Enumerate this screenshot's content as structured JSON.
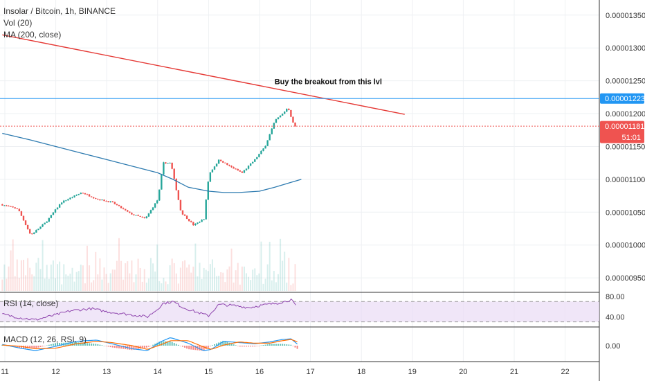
{
  "chart_data": {
    "type": "candlestick",
    "title": "Insolar / Bitcoin, 1h, BINANCE",
    "indicators": {
      "volume": "Vol (20)",
      "ma": "MA (200, close)",
      "rsi": "RSI (14, close)",
      "macd": "MACD (12, 26, RSI, 9)"
    },
    "x_axis": {
      "labels": [
        "11",
        "12",
        "13",
        "14",
        "15",
        "16",
        "17",
        "18",
        "19",
        "20",
        "21",
        "22"
      ]
    },
    "price_axis": {
      "ticks": [
        "0.00001350",
        "0.00001300",
        "0.00001250",
        "0.00001200",
        "0.00001150",
        "0.00001100",
        "0.00001050",
        "0.00001000",
        "0.00000950"
      ],
      "tick_values": [
        1.35e-05,
        1.3e-05,
        1.25e-05,
        1.2e-05,
        1.15e-05,
        1.1e-05,
        1.05e-05,
        1e-05,
        9.5e-06
      ],
      "range": [
        9.28e-06,
        1.373e-05
      ]
    },
    "rsi_axis": {
      "ticks": [
        "80.00",
        "40.00"
      ],
      "tick_values": [
        80,
        40
      ],
      "range": [
        20,
        88
      ],
      "band": [
        30,
        70
      ]
    },
    "macd_axis": {
      "ticks": [
        "0.00"
      ],
      "tick_values": [
        0
      ]
    },
    "levels": {
      "resistance_label": "0.00001223",
      "resistance_value": 1.223e-05,
      "last_price_label": "0.00001181",
      "last_price_value": 1.181e-05,
      "countdown": "51:01"
    },
    "annotation": "Buy the breakout from this lvl",
    "trendline": {
      "from": {
        "day": 10.95,
        "price": 1.32e-05
      },
      "to": {
        "day": 18.85,
        "price": 1.199e-05
      }
    },
    "price_path": {
      "day": [
        10.95,
        11.3,
        11.55,
        11.85,
        12.15,
        12.55,
        12.85,
        13.15,
        13.5,
        13.8,
        14.05,
        14.15,
        14.3,
        14.5,
        14.75,
        14.95,
        15.05,
        15.25,
        15.45,
        15.7,
        15.95,
        16.15,
        16.35,
        16.5,
        16.6,
        16.72
      ],
      "price": [
        1.062e-05,
        1.055e-05,
        1.015e-05,
        1.035e-05,
        1.065e-05,
        1.08e-05,
        1.07e-05,
        1.065e-05,
        1.048e-05,
        1.04e-05,
        1.07e-05,
        1.125e-05,
        1.125e-05,
        1.05e-05,
        1.03e-05,
        1.04e-05,
        1.108e-05,
        1.13e-05,
        1.12e-05,
        1.11e-05,
        1.13e-05,
        1.15e-05,
        1.19e-05,
        1.2e-05,
        1.21e-05,
        1.181e-05
      ]
    },
    "ma_line": {
      "day": [
        10.95,
        11.5,
        12.0,
        12.5,
        13.0,
        13.5,
        14.0,
        14.3,
        14.6,
        15.0,
        15.3,
        15.6,
        16.0,
        16.3,
        16.6,
        16.82
      ],
      "price": [
        1.17e-05,
        1.16e-05,
        1.15e-05,
        1.14e-05,
        1.13e-05,
        1.12e-05,
        1.11e-05,
        1.1e-05,
        1.088e-05,
        1.082e-05,
        1.08e-05,
        1.08e-05,
        1.082e-05,
        1.088e-05,
        1.095e-05,
        1.1e-05
      ]
    },
    "rsi_line": {
      "day": [
        10.95,
        11.3,
        11.6,
        12.0,
        12.3,
        12.7,
        13.0,
        13.4,
        13.8,
        14.0,
        14.1,
        14.3,
        14.5,
        14.8,
        15.0,
        15.2,
        15.5,
        15.8,
        16.0,
        16.3,
        16.5,
        16.62,
        16.72
      ],
      "value": [
        45,
        38,
        34,
        44,
        52,
        56,
        50,
        45,
        40,
        55,
        66,
        70,
        58,
        48,
        42,
        64,
        62,
        58,
        62,
        66,
        70,
        74,
        60
      ]
    },
    "macd_line": {
      "day": [
        10.95,
        11.3,
        11.6,
        12.0,
        12.4,
        12.8,
        13.1,
        13.5,
        13.8,
        14.05,
        14.25,
        14.6,
        14.9,
        15.05,
        15.3,
        15.6,
        15.9,
        16.2,
        16.45,
        16.62,
        16.75
      ],
      "value": [
        0.2,
        -0.4,
        -0.8,
        -0.1,
        0.7,
        0.9,
        0.3,
        -0.5,
        -0.8,
        0.6,
        1.3,
        0.4,
        -0.8,
        -0.6,
        0.7,
        0.5,
        0.3,
        0.6,
        1.0,
        1.1,
        0.2
      ]
    },
    "macd_signal": {
      "day": [
        10.95,
        11.3,
        11.6,
        12.0,
        12.4,
        12.8,
        13.1,
        13.5,
        13.8,
        14.05,
        14.25,
        14.6,
        14.9,
        15.05,
        15.3,
        15.6,
        15.9,
        16.2,
        16.45,
        16.62,
        16.75
      ],
      "value": [
        0.1,
        -0.1,
        -0.5,
        -0.4,
        0.3,
        0.7,
        0.5,
        0.0,
        -0.6,
        0.1,
        0.8,
        0.8,
        -0.2,
        -0.6,
        0.1,
        0.6,
        0.4,
        0.4,
        0.8,
        1.0,
        0.6
      ]
    },
    "colors": {
      "up": "#26a69a",
      "down": "#ef5350",
      "ma": "#2e7bb0",
      "trendline": "#e53935",
      "level": "#2196f3",
      "rsi": "#8e44ad",
      "macd": "#2196f3",
      "signal": "#ff6d00"
    }
  }
}
